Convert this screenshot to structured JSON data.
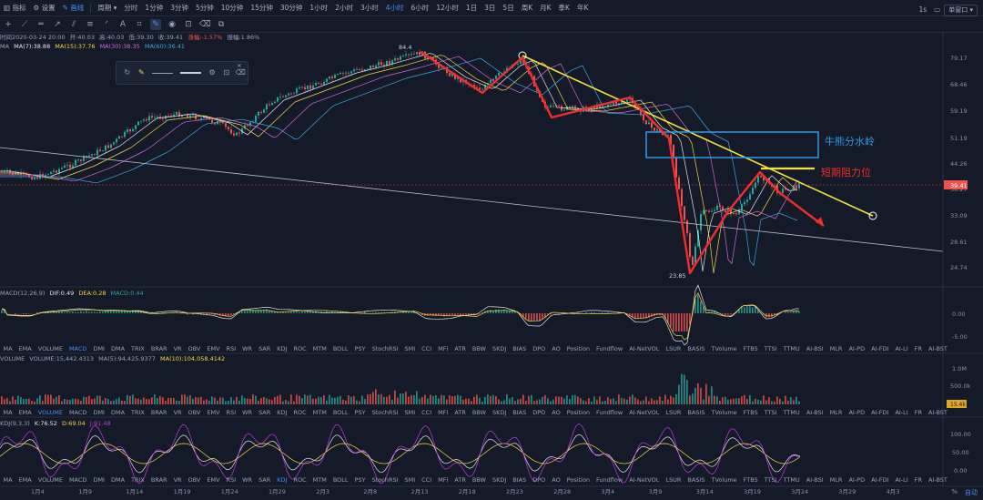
{
  "topbar": {
    "left_items": [
      "指标",
      "设置",
      "画线"
    ],
    "period_label": "周期",
    "periods": [
      "分时",
      "1分钟",
      "3分钟",
      "5分钟",
      "10分钟",
      "15分钟",
      "30分钟",
      "1小时",
      "2小时",
      "3小时",
      "4小时",
      "6小时",
      "12小时",
      "1日",
      "3日",
      "5日",
      "周K",
      "月K",
      "季K",
      "年K"
    ],
    "active_period": "4小时",
    "right_interval": "1s",
    "right_window": "单窗口"
  },
  "toolbar": {
    "tools": [
      "crosshair-icon",
      "trendline-icon",
      "horizontal-line-icon",
      "ray-icon",
      "parallel-channel-icon",
      "fibonacci-icon",
      "brush-icon",
      "text-icon",
      "measure-icon",
      "magnet-icon",
      "eye-icon",
      "lock-icon",
      "trash-icon",
      "copy-icon"
    ]
  },
  "price_info": {
    "time": "时间2020-03-24 20:00",
    "open": "开:40.03",
    "high": "高:40.03",
    "low": "低:39.30",
    "close": "收:39.41",
    "change": "涨幅:-1.57%",
    "amplitude": "振幅:1.86%"
  },
  "ma_legend": {
    "label": "MA",
    "items": [
      {
        "text": "MA(7):38.88",
        "color": "#e3e6ec"
      },
      {
        "text": "MA(15):37.76",
        "color": "#f5d742"
      },
      {
        "text": "MA(30):38.35",
        "color": "#d36ad6"
      },
      {
        "text": "MA(60):36.41",
        "color": "#3fa7e0"
      }
    ]
  },
  "price_axis": {
    "ticks": [
      "79.17",
      "68.46",
      "59.19",
      "51.19",
      "44.26",
      "38.27",
      "33.09",
      "28.61",
      "24.74"
    ],
    "current": "39.41"
  },
  "annotations": {
    "high_label": "84.4",
    "low_label": "23.85",
    "zone_label": "牛熊分水岭",
    "resistance_label": "短期阻力位"
  },
  "macd": {
    "legend_title": "MACD(12,26,9)",
    "dif": "DIF:0.49",
    "dea": "DEA:0.28",
    "macd": "MACD:0.44",
    "ticks": [
      "0.00",
      "-5.00"
    ]
  },
  "volume": {
    "legend_title": "VOLUME",
    "volume": "VOLUME:15,442.4313",
    "ma5": "MA(5):94,425.9377",
    "ma10": "MA(10):104,058.4142",
    "ticks": [
      "1.0M",
      "500.0k"
    ],
    "current": "15.4k"
  },
  "kdj": {
    "legend_title": "KDJ(9,3,3)",
    "k": "K:76.52",
    "d": "D:69.04",
    "j": "J:91.48",
    "ticks": [
      "100.00",
      "50.00",
      "0.00"
    ]
  },
  "indicator_tabs": [
    "MA",
    "EMA",
    "VOLUME",
    "MACD",
    "DMI",
    "DMA",
    "TRIX",
    "BRAR",
    "VR",
    "OBV",
    "EMV",
    "RSI",
    "WR",
    "SAR",
    "KDJ",
    "ROC",
    "MTM",
    "BOLL",
    "PSY",
    "StochRSI",
    "SMI",
    "CCI",
    "MFI",
    "ATR",
    "BBW",
    "SKDJ",
    "BIAS",
    "DPO",
    "AO",
    "Position",
    "Fundflow",
    "AI-NetVOL",
    "LSUR",
    "BASIS",
    "TVolume",
    "FTBS",
    "TTSI",
    "TTMU",
    "AI-BSI",
    "MLR",
    "AI-PD",
    "AI-FDI",
    "AI-LI",
    "FR",
    "AI-BST"
  ],
  "indicator_tabs_active": {
    "row1": "MACD",
    "row2": "VOLUME",
    "row3": "KDJ"
  },
  "date_axis": [
    "1月4",
    "1月9",
    "1月14",
    "1月19",
    "1月24",
    "1月29",
    "2月3",
    "2月8",
    "2月13",
    "2月18",
    "2月23",
    "2月28",
    "3月4",
    "3月9",
    "3月14",
    "3月19",
    "3月24",
    "3月29",
    "4月3"
  ],
  "bottom_right": {
    "date": "4月3",
    "percent": "%",
    "auto": "自动"
  },
  "colors": {
    "up": "#26a69a",
    "down": "#ef5350",
    "accent": "#4c8df6",
    "yellow": "#f5d742",
    "red_arrow": "#ef2f2f",
    "zone": "#2f9be6"
  }
}
